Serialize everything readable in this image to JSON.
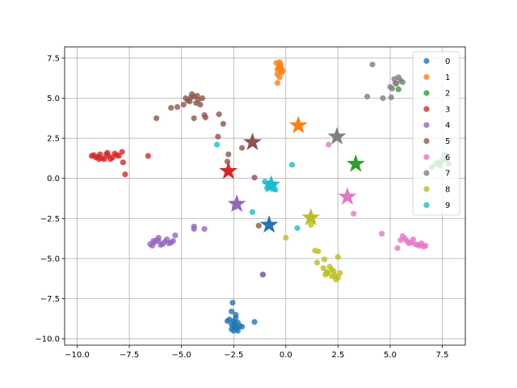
{
  "chart_data": {
    "type": "scatter",
    "title": "",
    "xlabel": "",
    "ylabel": "",
    "xlim": [
      -10.6,
      8.6
    ],
    "ylim": [
      -10.4,
      8.2
    ],
    "xticks": [
      -10.0,
      -7.5,
      -5.0,
      -2.5,
      0.0,
      2.5,
      5.0,
      7.5
    ],
    "yticks": [
      -10.0,
      -7.5,
      -5.0,
      -2.5,
      0.0,
      2.5,
      5.0,
      7.5
    ],
    "grid": true,
    "legend_position": "top-right",
    "colors": [
      "#1f77b4",
      "#ff7f0e",
      "#2ca02c",
      "#d62728",
      "#9467bd",
      "#8c564b",
      "#e377c2",
      "#7f7f7f",
      "#bcbd22",
      "#17becf"
    ],
    "series": [
      {
        "name": "0",
        "points": [
          [
            -2.5,
            -8.9
          ],
          [
            -2.6,
            -9.1
          ],
          [
            -2.4,
            -9.3
          ],
          [
            -2.5,
            -9.5
          ],
          [
            -2.3,
            -9.0
          ],
          [
            -2.7,
            -8.8
          ],
          [
            -2.2,
            -9.2
          ],
          [
            -2.6,
            -9.4
          ],
          [
            -2.4,
            -8.7
          ],
          [
            -2.3,
            -9.5
          ],
          [
            -2.5,
            -9.2
          ],
          [
            -2.6,
            -8.3
          ],
          [
            -2.4,
            -8.5
          ],
          [
            -2.55,
            -7.75
          ],
          [
            -2.1,
            -9.25
          ],
          [
            -1.5,
            -8.95
          ],
          [
            -1.1,
            -6.0
          ],
          [
            -2.8,
            -8.9
          ],
          [
            -2.45,
            -9.0
          ],
          [
            -2.35,
            -9.35
          ]
        ],
        "centroid": [
          -0.8,
          -2.9
        ]
      },
      {
        "name": "1",
        "points": [
          [
            -0.45,
            7.2
          ],
          [
            -0.3,
            7.0
          ],
          [
            -0.4,
            6.8
          ],
          [
            -0.2,
            6.6
          ],
          [
            -0.35,
            6.9
          ],
          [
            -0.25,
            7.1
          ],
          [
            -0.4,
            6.5
          ],
          [
            -0.3,
            6.3
          ],
          [
            -0.15,
            6.7
          ],
          [
            -0.4,
            5.95
          ],
          [
            -0.3,
            7.25
          ],
          [
            -0.2,
            6.85
          ]
        ],
        "centroid": [
          0.6,
          3.3
        ]
      },
      {
        "name": "2",
        "points": [
          [
            7.2,
            0.9
          ],
          [
            7.5,
            1.1
          ],
          [
            7.4,
            0.8
          ],
          [
            7.7,
            1.2
          ],
          [
            7.6,
            1.5
          ],
          [
            7.3,
            1.0
          ],
          [
            7.8,
            0.9
          ],
          [
            5.4,
            5.55
          ],
          [
            7.0,
            0.7
          ]
        ],
        "centroid": [
          3.35,
          0.9
        ]
      },
      {
        "name": "3",
        "points": [
          [
            -9.3,
            1.4
          ],
          [
            -9.1,
            1.3
          ],
          [
            -8.9,
            1.5
          ],
          [
            -8.7,
            1.2
          ],
          [
            -8.5,
            1.4
          ],
          [
            -8.3,
            1.3
          ],
          [
            -8.1,
            1.45
          ],
          [
            -9.0,
            1.35
          ],
          [
            -8.8,
            1.25
          ],
          [
            -8.6,
            1.5
          ],
          [
            -8.4,
            1.2
          ],
          [
            -8.2,
            1.55
          ],
          [
            -8.0,
            1.4
          ],
          [
            -7.85,
            1.65
          ],
          [
            -7.8,
            1.0
          ],
          [
            -7.7,
            0.25
          ],
          [
            -6.6,
            1.4
          ],
          [
            -9.2,
            1.45
          ],
          [
            -8.95,
            1.2
          ],
          [
            -8.55,
            1.6
          ]
        ],
        "centroid": [
          -2.75,
          0.45
        ]
      },
      {
        "name": "4",
        "points": [
          [
            -6.5,
            -4.1
          ],
          [
            -6.3,
            -4.0
          ],
          [
            -6.1,
            -3.9
          ],
          [
            -5.9,
            -4.1
          ],
          [
            -5.7,
            -3.8
          ],
          [
            -5.5,
            -4.0
          ],
          [
            -6.4,
            -4.2
          ],
          [
            -6.2,
            -3.85
          ],
          [
            -6.0,
            -4.15
          ],
          [
            -5.8,
            -3.95
          ],
          [
            -5.6,
            -4.05
          ],
          [
            -5.4,
            -3.9
          ],
          [
            -5.3,
            -3.55
          ],
          [
            -6.35,
            -3.9
          ],
          [
            -4.4,
            -3.0
          ],
          [
            -4.4,
            -3.15
          ],
          [
            -3.9,
            -3.15
          ],
          [
            -2.45,
            -1.8
          ],
          [
            -1.1,
            -6.0
          ],
          [
            -6.1,
            -3.7
          ]
        ],
        "centroid": [
          -2.35,
          -1.6
        ]
      },
      {
        "name": "5",
        "points": [
          [
            -4.8,
            5.0
          ],
          [
            -4.6,
            4.8
          ],
          [
            -4.4,
            5.1
          ],
          [
            -4.2,
            4.9
          ],
          [
            -4.0,
            5.0
          ],
          [
            -4.5,
            5.25
          ],
          [
            -4.3,
            4.7
          ],
          [
            -4.7,
            4.85
          ],
          [
            -4.1,
            4.6
          ],
          [
            -4.9,
            4.6
          ],
          [
            -5.2,
            4.45
          ],
          [
            -5.5,
            4.4
          ],
          [
            -6.2,
            3.75
          ],
          [
            -4.4,
            3.75
          ],
          [
            -3.9,
            3.95
          ],
          [
            -3.85,
            3.8
          ],
          [
            -3.2,
            4.0
          ],
          [
            -3.0,
            3.4
          ],
          [
            -3.25,
            2.6
          ],
          [
            -2.75,
            1.5
          ],
          [
            -2.8,
            1.05
          ],
          [
            -2.1,
            1.9
          ],
          [
            -1.5,
            0.05
          ],
          [
            -1.3,
            -2.95
          ],
          [
            -4.55,
            5.05
          ],
          [
            -4.25,
            5.15
          ]
        ],
        "centroid": [
          -1.6,
          2.25
        ]
      },
      {
        "name": "6",
        "points": [
          [
            5.6,
            -3.6
          ],
          [
            5.8,
            -3.9
          ],
          [
            6.0,
            -4.0
          ],
          [
            6.2,
            -4.1
          ],
          [
            6.4,
            -4.2
          ],
          [
            6.6,
            -4.25
          ],
          [
            5.7,
            -3.75
          ],
          [
            6.1,
            -3.8
          ],
          [
            6.3,
            -4.15
          ],
          [
            6.5,
            -4.05
          ],
          [
            5.5,
            -3.85
          ],
          [
            5.35,
            -4.35
          ],
          [
            4.6,
            -3.45
          ],
          [
            3.25,
            -2.2
          ],
          [
            2.05,
            2.1
          ],
          [
            6.7,
            -4.2
          ],
          [
            5.9,
            -4.05
          ]
        ],
        "centroid": [
          2.95,
          -1.15
        ]
      },
      {
        "name": "7",
        "points": [
          [
            5.1,
            5.6
          ],
          [
            5.3,
            5.9
          ],
          [
            5.5,
            6.1
          ],
          [
            5.2,
            6.2
          ],
          [
            5.0,
            5.7
          ],
          [
            5.4,
            6.3
          ],
          [
            5.6,
            6.0
          ],
          [
            4.65,
            5.0
          ],
          [
            5.05,
            5.05
          ],
          [
            3.9,
            5.1
          ],
          [
            4.15,
            7.1
          ],
          [
            5.25,
            5.95
          ]
        ],
        "centroid": [
          2.45,
          2.6
        ]
      },
      {
        "name": "8",
        "points": [
          [
            1.8,
            -5.6
          ],
          [
            2.0,
            -5.9
          ],
          [
            2.2,
            -6.1
          ],
          [
            2.4,
            -6.3
          ],
          [
            2.3,
            -5.8
          ],
          [
            2.1,
            -5.5
          ],
          [
            1.9,
            -6.0
          ],
          [
            2.5,
            -6.2
          ],
          [
            2.6,
            -5.9
          ],
          [
            2.2,
            -5.7
          ],
          [
            1.4,
            -4.5
          ],
          [
            1.55,
            -4.55
          ],
          [
            1.5,
            -5.25
          ],
          [
            1.85,
            -5.05
          ],
          [
            2.5,
            -4.9
          ],
          [
            0.0,
            -3.7
          ],
          [
            1.2,
            -2.9
          ],
          [
            1.95,
            -5.85
          ],
          [
            2.35,
            -6.05
          ]
        ],
        "centroid": [
          1.2,
          -2.45
        ]
      },
      {
        "name": "9",
        "points": [
          [
            -0.8,
            -0.3
          ],
          [
            -0.6,
            -0.5
          ],
          [
            -0.5,
            -0.7
          ],
          [
            -0.7,
            -0.4
          ],
          [
            -0.9,
            -0.6
          ],
          [
            -0.55,
            -0.35
          ],
          [
            -1.0,
            -0.2
          ],
          [
            -0.85,
            -0.45
          ],
          [
            -0.65,
            -0.65
          ],
          [
            -3.3,
            2.1
          ],
          [
            -1.6,
            -2.1
          ],
          [
            0.3,
            0.85
          ],
          [
            0.55,
            -3.1
          ],
          [
            -0.75,
            -0.55
          ]
        ],
        "centroid": [
          -0.7,
          -0.4
        ]
      }
    ]
  }
}
